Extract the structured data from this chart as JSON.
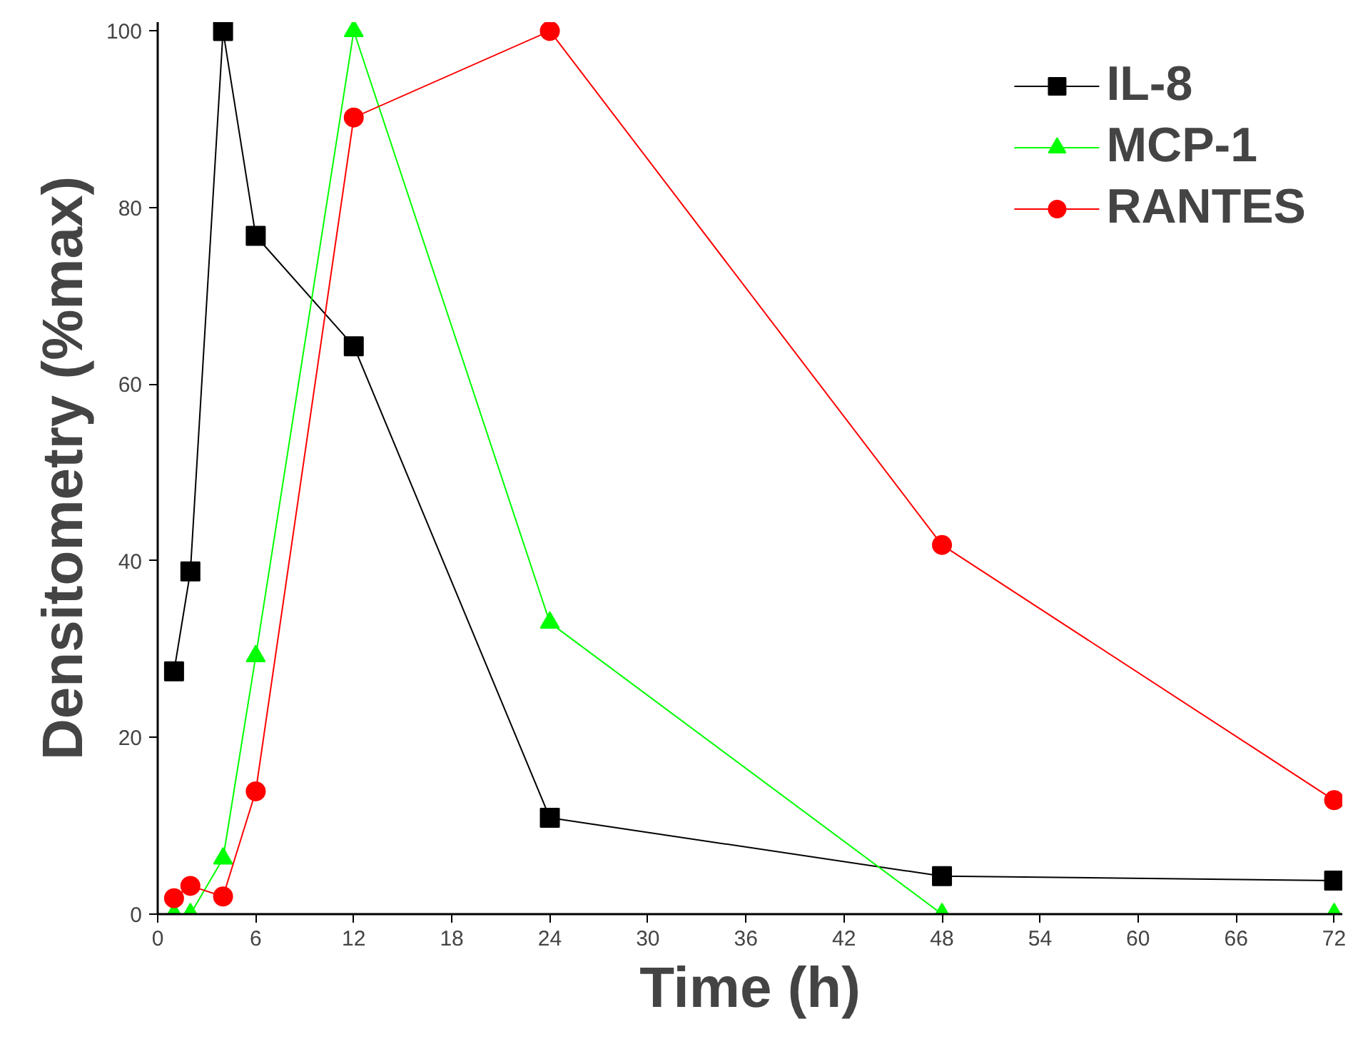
{
  "chart_data": {
    "type": "line",
    "xlabel": "Time (h)",
    "ylabel": "Densitometry (%max)",
    "xlim": [
      0,
      72.5
    ],
    "ylim": [
      0,
      101
    ],
    "xticks": [
      0,
      6,
      12,
      18,
      24,
      30,
      36,
      42,
      48,
      54,
      60,
      66,
      72
    ],
    "yticks": [
      0,
      20,
      40,
      60,
      80,
      100
    ],
    "grid": false,
    "legend": "top right",
    "line_style": "solid",
    "series": [
      {
        "name": "IL-8",
        "color": "#000000",
        "marker": "square",
        "x": [
          1,
          2,
          4,
          6,
          12,
          24,
          48,
          72
        ],
        "values": [
          27.5,
          38.8,
          100,
          76.8,
          64.3,
          10.9,
          4.3,
          3.8
        ]
      },
      {
        "name": "MCP-1",
        "color": "#00ff00",
        "marker": "triangle",
        "x": [
          1,
          2,
          4,
          6,
          12,
          24,
          48,
          72
        ],
        "values": [
          0,
          0,
          6.3,
          29.2,
          100,
          33,
          0,
          0
        ]
      },
      {
        "name": "RANTES",
        "color": "#ff0000",
        "marker": "circle",
        "x": [
          1,
          2,
          4,
          6,
          12,
          24,
          48,
          72
        ],
        "values": [
          1.8,
          3.2,
          2,
          13.9,
          90.2,
          100,
          41.8,
          12.9
        ]
      }
    ]
  }
}
